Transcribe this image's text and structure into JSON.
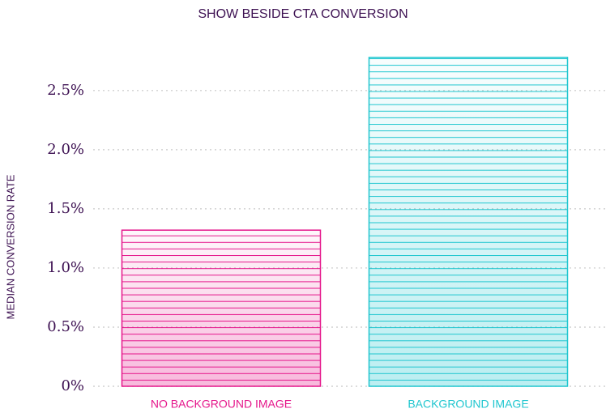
{
  "chart_data": {
    "type": "bar",
    "title": "SHOW BESIDE CTA CONVERSION",
    "y_label": "MEDIAN CONVERSION RATE",
    "categories": [
      "NO BACKGROUND IMAGE",
      "BACKGROUND IMAGE"
    ],
    "values": [
      1.32,
      2.78
    ],
    "colors": [
      "#e5168b",
      "#1fc6cf"
    ],
    "ylim": [
      0,
      2.8
    ],
    "yticks": [
      {
        "value": 0,
        "label": "0%"
      },
      {
        "value": 0.5,
        "label": "0.5%"
      },
      {
        "value": 1,
        "label": "1.0%"
      },
      {
        "value": 1.5,
        "label": "1.5%"
      },
      {
        "value": 2,
        "label": "2.0%"
      },
      {
        "value": 2.5,
        "label": "2.5%"
      }
    ],
    "grid": true
  }
}
